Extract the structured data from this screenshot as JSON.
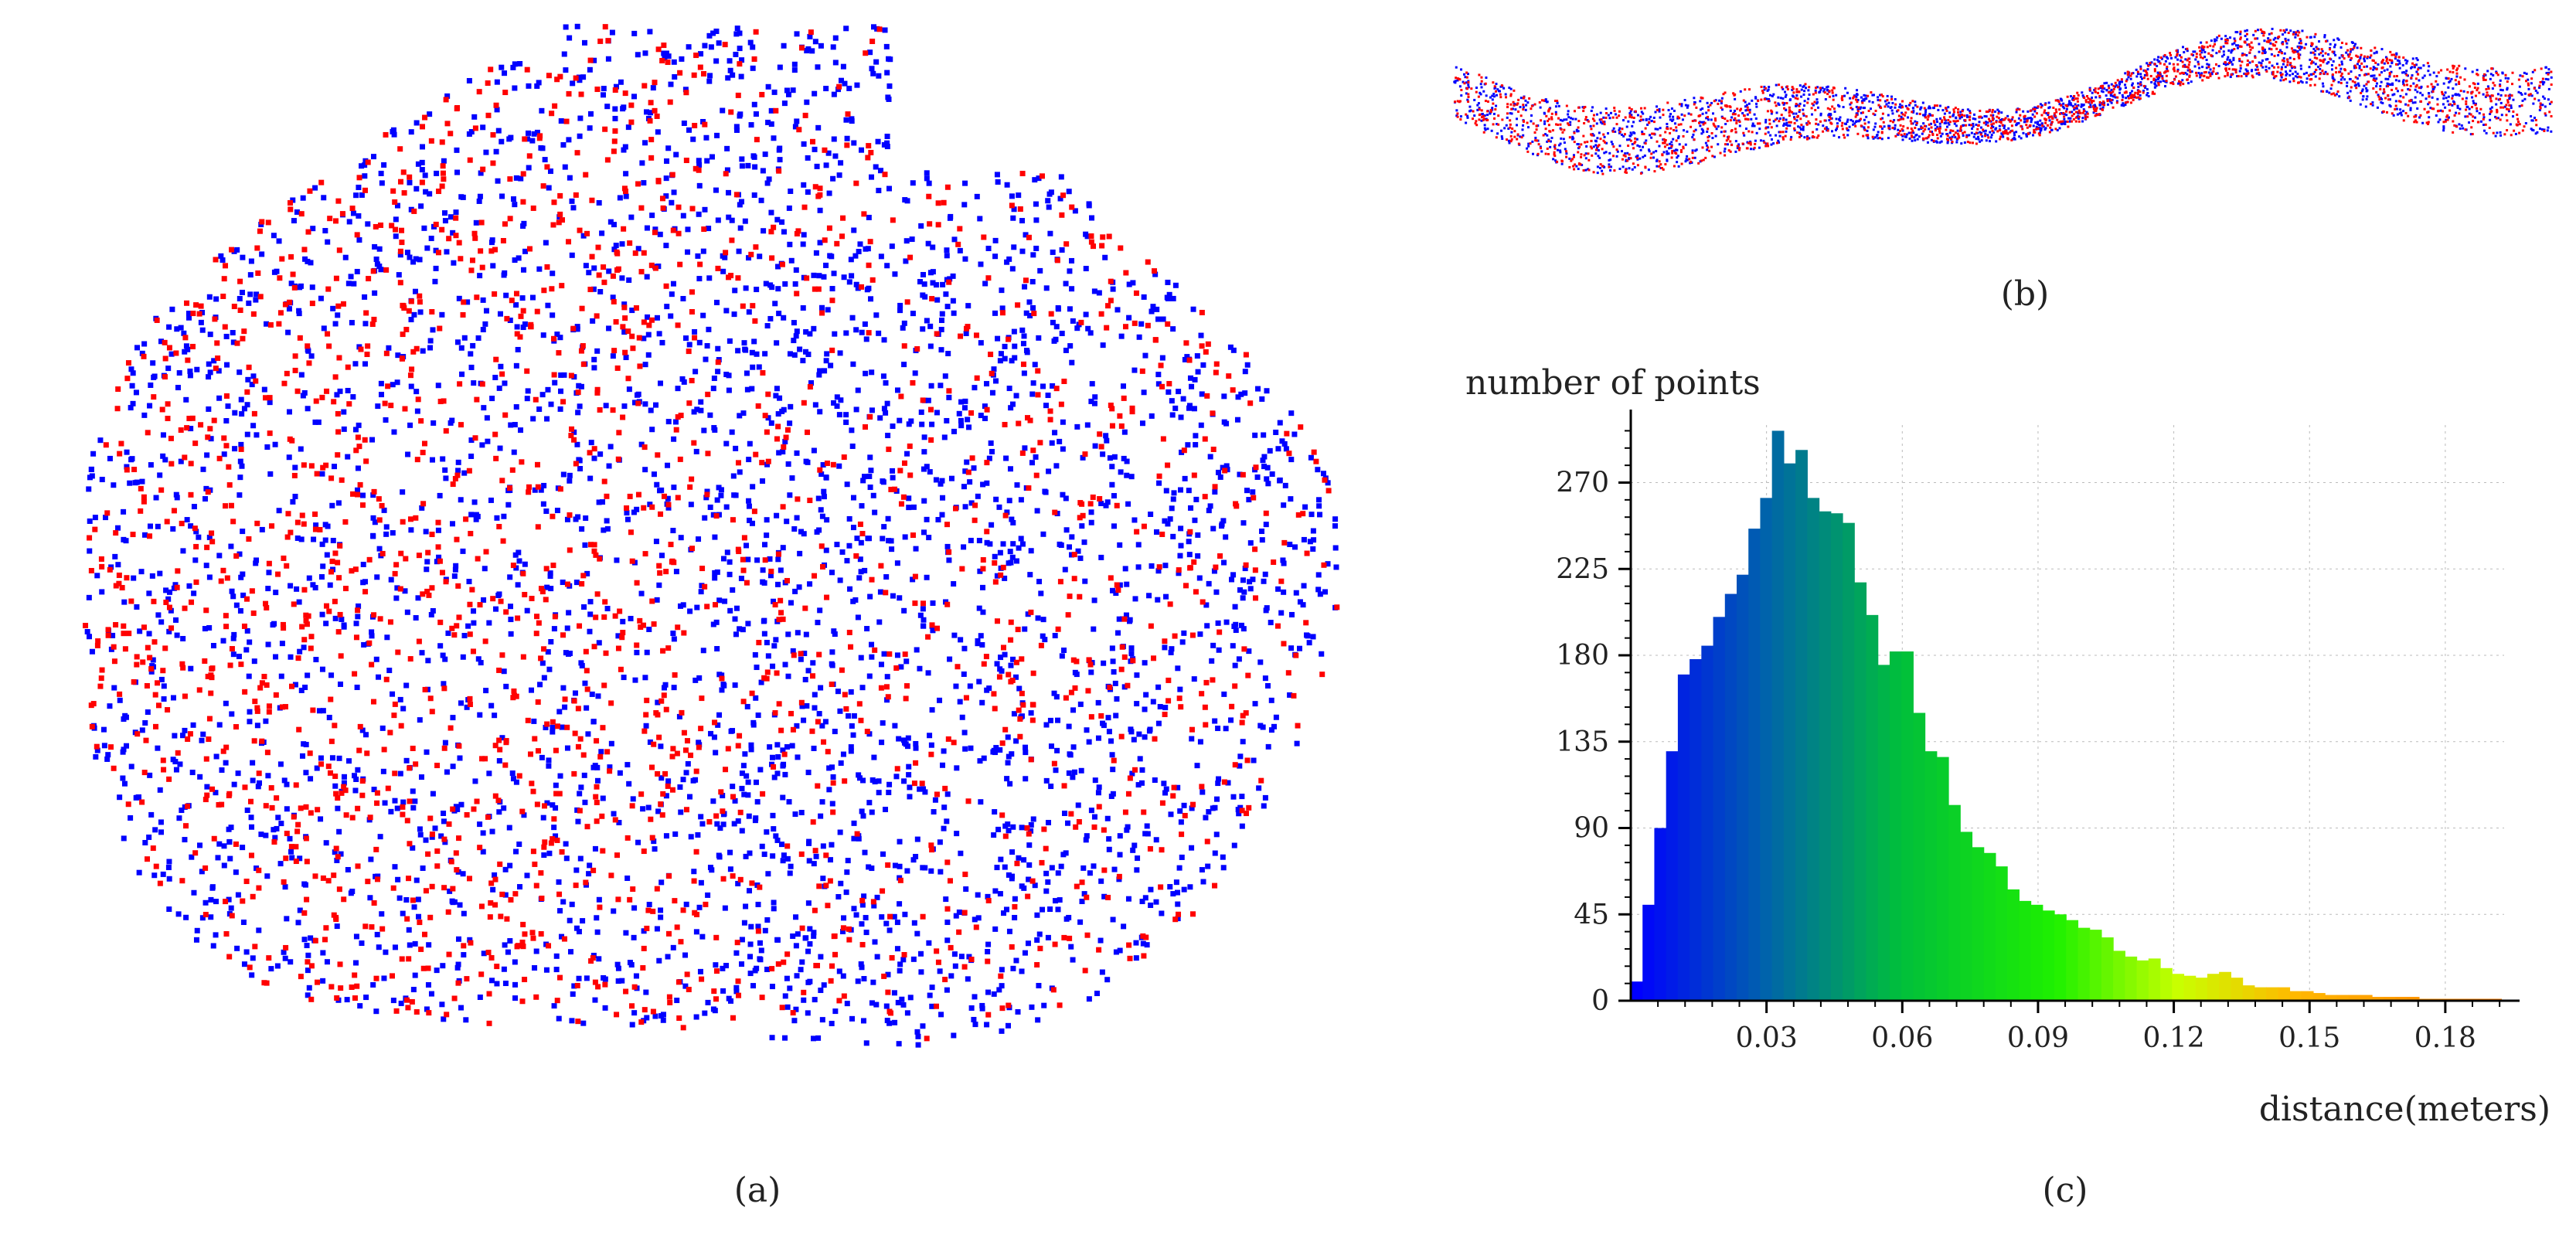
{
  "captions": {
    "a": "(a)",
    "b": "(b)",
    "c": "(c)"
  },
  "colors": {
    "cloud_1": "#ff0000",
    "cloud_2": "#0000ff"
  },
  "chart_data": [
    {
      "type": "scatter",
      "series": [],
      "notes": "top view of two overlapping point clouds (red and blue); individual point coordinates not readable"
    },
    {
      "type": "scatter",
      "series": [],
      "notes": "side view of the two overlapping point clouds (red and blue)"
    },
    {
      "type": "bar",
      "xlabel": "distance(meters)",
      "ylabel": "number of points",
      "xticks": [
        0.03,
        0.06,
        0.09,
        0.12,
        0.15,
        0.18
      ],
      "yticks": [
        0,
        45,
        90,
        135,
        180,
        225,
        270
      ],
      "xlim": [
        0.0,
        0.193
      ],
      "ylim": [
        0,
        300
      ],
      "grid": true,
      "bin_width": 0.0026,
      "colormap": "blue-to-orange by distance",
      "values": [
        10,
        50,
        90,
        130,
        170,
        178,
        185,
        200,
        212,
        222,
        246,
        262,
        297,
        280,
        287,
        262,
        255,
        254,
        249,
        218,
        201,
        175,
        182,
        182,
        150,
        130,
        127,
        102,
        88,
        80,
        77,
        70,
        58,
        52,
        50,
        47,
        45,
        42,
        38,
        37,
        33,
        26,
        23,
        21,
        22,
        17,
        14,
        13,
        12,
        14,
        15,
        12,
        8,
        7,
        7,
        7,
        5,
        5,
        4,
        3,
        3,
        3,
        3,
        2,
        2,
        2,
        2,
        1,
        1,
        1,
        1,
        1,
        1,
        1
      ]
    }
  ]
}
